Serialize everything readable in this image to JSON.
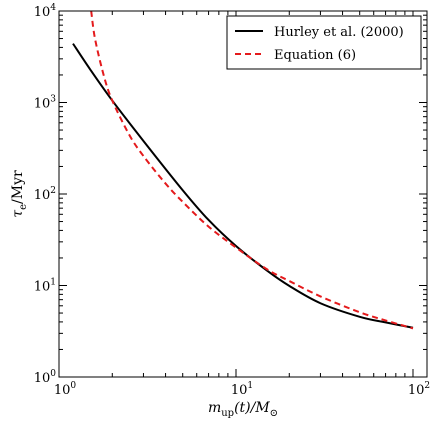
{
  "chart_data": {
    "type": "line",
    "xscale": "log",
    "yscale": "log",
    "xlim": [
      1,
      120
    ],
    "ylim": [
      1,
      10000
    ],
    "x_ticks": [
      {
        "base": "10",
        "exp": "0",
        "value": 1
      },
      {
        "base": "10",
        "exp": "1",
        "value": 10
      },
      {
        "base": "10",
        "exp": "2",
        "value": 100
      }
    ],
    "y_ticks": [
      {
        "base": "10",
        "exp": "0",
        "value": 1
      },
      {
        "base": "10",
        "exp": "1",
        "value": 10
      },
      {
        "base": "10",
        "exp": "2",
        "value": 100
      },
      {
        "base": "10",
        "exp": "3",
        "value": 1000
      },
      {
        "base": "10",
        "exp": "4",
        "value": 10000
      }
    ],
    "xlabel": {
      "main": "m",
      "sub": "up",
      "rest": "(t)/M",
      "sub2": "⊙"
    },
    "ylabel": {
      "main": "τ",
      "sub": "e",
      "rest": "/Myr"
    },
    "legend_position": "top-right",
    "series": [
      {
        "name": "Hurley et al. (2000)",
        "style": "solid",
        "color": "#000000",
        "x": [
          1.2,
          1.5,
          2,
          3,
          5,
          7,
          10,
          15,
          20,
          30,
          50,
          70,
          100
        ],
        "y": [
          4400,
          2300,
          1050,
          380,
          110,
          52,
          27,
          14.5,
          9.9,
          6.4,
          4.55,
          3.95,
          3.45
        ]
      },
      {
        "name": "Equation (6)",
        "style": "dashed",
        "color": "#e41a1c",
        "x": [
          1.52,
          1.6,
          1.8,
          2,
          2.5,
          3,
          4,
          5,
          7,
          10,
          15,
          20,
          30,
          50,
          70,
          100
        ],
        "y": [
          10000,
          4900,
          1900,
          1050,
          440,
          260,
          130,
          82,
          44,
          26,
          15,
          11.2,
          7.6,
          5.1,
          4.15,
          3.4
        ]
      }
    ]
  }
}
